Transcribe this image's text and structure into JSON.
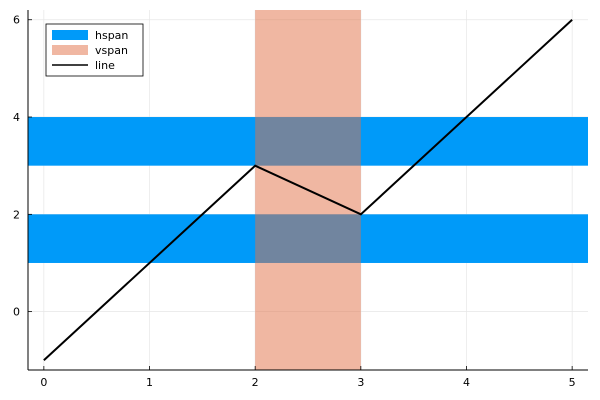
{
  "chart_data": {
    "type": "line",
    "title": "",
    "xlabel": "",
    "ylabel": "",
    "xlim": [
      -0.15,
      5.15
    ],
    "ylim": [
      -1.2,
      6.2
    ],
    "xticks": [
      0,
      1,
      2,
      3,
      4,
      5
    ],
    "yticks": [
      0,
      2,
      4,
      6
    ],
    "grid": true,
    "legend_position": "top-left",
    "series": [
      {
        "name": "hspan",
        "kind": "hspan",
        "color": "#009af9",
        "bands": [
          [
            1,
            2
          ],
          [
            3,
            4
          ]
        ]
      },
      {
        "name": "vspan",
        "kind": "vspan",
        "color": "#e26f46",
        "opacity": 0.5,
        "bands": [
          [
            2,
            3
          ]
        ]
      },
      {
        "name": "line",
        "kind": "line",
        "color": "#000000",
        "x": [
          0,
          2,
          3,
          5
        ],
        "y": [
          -1,
          3,
          2,
          6
        ]
      }
    ]
  }
}
